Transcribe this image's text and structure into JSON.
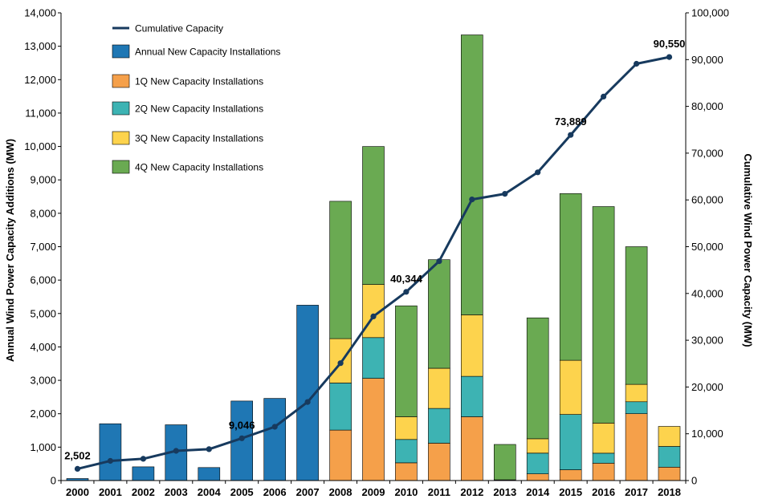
{
  "chart_data": {
    "type": "bar",
    "stacked": true,
    "categories": [
      "2000",
      "2001",
      "2002",
      "2003",
      "2004",
      "2005",
      "2006",
      "2007",
      "2008",
      "2009",
      "2010",
      "2011",
      "2012",
      "2013",
      "2014",
      "2015",
      "2016",
      "2017",
      "2018"
    ],
    "ylabel": "Annual Wind Power Capacity Additions (MW)",
    "y2label": "Cumulative Wind Power Capacity (MW)",
    "ylim": [
      0,
      14000
    ],
    "y2lim": [
      0,
      100000
    ],
    "yticks": [
      "0",
      "1,000",
      "2,000",
      "3,000",
      "4,000",
      "5,000",
      "6,000",
      "7,000",
      "8,000",
      "9,000",
      "10,000",
      "11,000",
      "12,000",
      "13,000",
      "14,000"
    ],
    "y2ticks": [
      "0",
      "10,000",
      "20,000",
      "30,000",
      "40,000",
      "50,000",
      "60,000",
      "70,000",
      "80,000",
      "90,000",
      "100,000"
    ],
    "grid": false,
    "legend_position": "top-left",
    "series": [
      {
        "name": "Annual New Capacity Installations",
        "kind": "bar",
        "color": "#1f77b4",
        "values": [
          60,
          1700,
          410,
          1670,
          390,
          2380,
          2460,
          5250,
          0,
          0,
          0,
          0,
          0,
          0,
          0,
          0,
          0,
          0,
          0
        ]
      },
      {
        "name": "1Q New Capacity Installations",
        "kind": "bar",
        "color": "#f5a04a",
        "values": [
          0,
          0,
          0,
          0,
          0,
          0,
          0,
          0,
          1510,
          3060,
          530,
          1120,
          1910,
          20,
          200,
          320,
          520,
          2000,
          400
        ]
      },
      {
        "name": "2Q New Capacity Installations",
        "kind": "bar",
        "color": "#3db3b3",
        "values": [
          0,
          0,
          0,
          0,
          0,
          0,
          0,
          0,
          1410,
          1220,
          700,
          1040,
          1210,
          0,
          620,
          1660,
          300,
          360,
          620
        ]
      },
      {
        "name": "3Q New Capacity Installations",
        "kind": "bar",
        "color": "#fdd34d",
        "values": [
          0,
          0,
          0,
          0,
          0,
          0,
          0,
          0,
          1330,
          1590,
          680,
          1200,
          1840,
          0,
          430,
          1620,
          900,
          520,
          600
        ]
      },
      {
        "name": "4Q New Capacity Installations",
        "kind": "bar",
        "color": "#6aaa52",
        "values": [
          0,
          0,
          0,
          0,
          0,
          0,
          0,
          0,
          4110,
          4130,
          3320,
          3250,
          8380,
          1060,
          3620,
          4990,
          6480,
          4120,
          0
        ]
      },
      {
        "name": "Cumulative Capacity",
        "kind": "line",
        "color": "#173a5e",
        "axis": "y2",
        "values": [
          2502,
          4200,
          4650,
          6350,
          6700,
          9046,
          11500,
          16800,
          25100,
          35100,
          40344,
          46900,
          60100,
          61300,
          65900,
          73889,
          82100,
          89100,
          90550
        ]
      }
    ],
    "annotations": [
      {
        "index": 0,
        "label": "2,502"
      },
      {
        "index": 5,
        "label": "9,046"
      },
      {
        "index": 10,
        "label": "40,344"
      },
      {
        "index": 15,
        "label": "73,889"
      },
      {
        "index": 18,
        "label": "90,550"
      }
    ],
    "legend_order": [
      5,
      0,
      1,
      2,
      3,
      4
    ]
  }
}
